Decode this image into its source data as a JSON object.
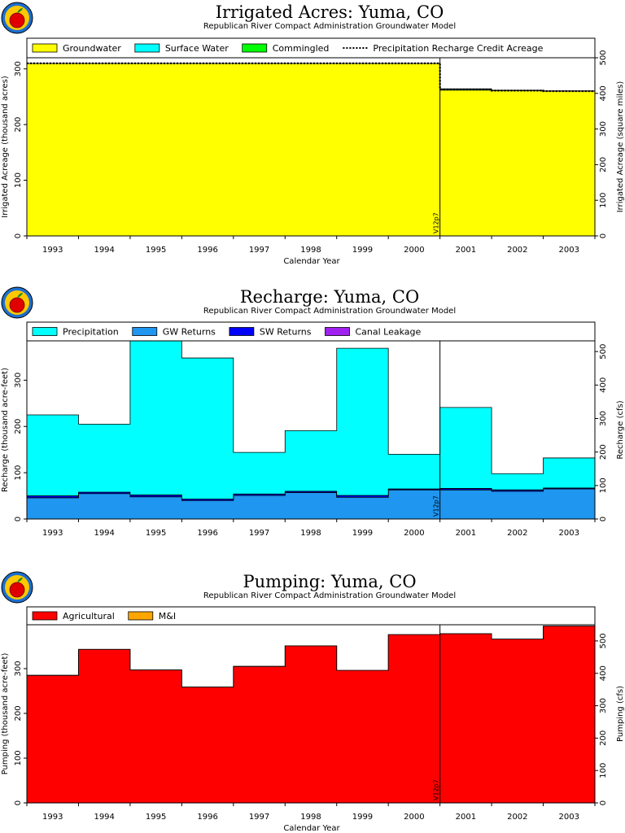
{
  "chart_data": [
    {
      "type": "area",
      "title": "Irrigated Acres: Yuma, CO",
      "subtitle": "Republican River Compact Administration Groundwater Model",
      "xlabel": "Calendar Year",
      "ylabel": "Irrigated Acreage (thousand acres)",
      "ylabel_right": "Irrigated Acreage (square miles)",
      "categories": [
        "1993",
        "1994",
        "1995",
        "1996",
        "1997",
        "1998",
        "1999",
        "2000",
        "2001",
        "2002",
        "2003"
      ],
      "ylim": [
        0,
        320
      ],
      "yticks": [
        0,
        100,
        200,
        300
      ],
      "ylim_right": [
        0,
        500
      ],
      "yticks_right": [
        0,
        100,
        200,
        300,
        400,
        500
      ],
      "series": [
        {
          "name": "Groundwater",
          "color": "#ffff00",
          "values": [
            310,
            310,
            310,
            310,
            310,
            310,
            310,
            310,
            262,
            261,
            260
          ]
        },
        {
          "name": "Surface Water",
          "color": "#00ffff",
          "values": [
            0,
            0,
            0,
            0,
            0,
            0,
            0,
            0,
            2,
            0.5,
            0.5
          ]
        },
        {
          "name": "Commingled",
          "color": "#00ff00",
          "values": [
            0,
            0,
            0,
            0,
            0,
            0,
            0,
            0,
            0,
            0,
            0
          ]
        }
      ],
      "line_series": {
        "name": "Precipitation Recharge Credit Acreage",
        "style": "dotted",
        "values": [
          310,
          310,
          310,
          310,
          310,
          310,
          310,
          310,
          263,
          261,
          260
        ]
      },
      "marker": {
        "year": "2000",
        "label": "V12p7"
      }
    },
    {
      "type": "area",
      "title": "Recharge: Yuma, CO",
      "subtitle": "Republican River Compact Administration Groundwater Model",
      "xlabel": "",
      "ylabel": "Recharge (thousand acre-feet)",
      "ylabel_right": "Recharge (cfs)",
      "categories": [
        "1993",
        "1994",
        "1995",
        "1996",
        "1997",
        "1998",
        "1999",
        "2000",
        "2001",
        "2002",
        "2003"
      ],
      "ylim": [
        0,
        385
      ],
      "yticks": [
        0,
        100,
        200,
        300
      ],
      "ylim_right": [
        0,
        532
      ],
      "yticks_right": [
        0,
        100,
        200,
        300,
        400,
        500
      ],
      "series": [
        {
          "name": "GW Returns",
          "color": "#1f96f0",
          "values": [
            46,
            55,
            48,
            40,
            51,
            57,
            47,
            63,
            63,
            60,
            65
          ]
        },
        {
          "name": "SW Returns",
          "color": "#0000ff",
          "values": [
            4,
            3,
            4,
            3,
            3,
            3,
            4,
            2,
            3,
            3,
            2
          ]
        },
        {
          "name": "Canal Leakage",
          "color": "#a020f0",
          "values": [
            0,
            0,
            0,
            0,
            0,
            0,
            0,
            0,
            0,
            0,
            0
          ]
        },
        {
          "name": "Precipitation",
          "color": "#00ffff",
          "values": [
            175,
            147,
            333,
            305,
            90,
            131,
            318,
            75,
            175,
            35,
            65
          ]
        }
      ],
      "legend_order": [
        "Precipitation",
        "GW Returns",
        "SW Returns",
        "Canal Leakage"
      ],
      "marker": {
        "year": "2000",
        "label": "V12p7"
      }
    },
    {
      "type": "area",
      "title": "Pumping: Yuma, CO",
      "subtitle": "Republican River Compact Administration Groundwater Model",
      "xlabel": "Calendar Year",
      "ylabel": "Pumping (thousand acre-feet)",
      "ylabel_right": "Pumping (cfs)",
      "categories": [
        "1993",
        "1994",
        "1995",
        "1996",
        "1997",
        "1998",
        "1999",
        "2000",
        "2001",
        "2002",
        "2003"
      ],
      "ylim": [
        0,
        398
      ],
      "yticks": [
        0,
        100,
        200,
        300
      ],
      "ylim_right": [
        0,
        550
      ],
      "yticks_right": [
        0,
        100,
        200,
        300,
        400,
        500
      ],
      "series": [
        {
          "name": "Agricultural",
          "color": "#ff0000",
          "values": [
            285,
            343,
            297,
            259,
            305,
            351,
            296,
            376,
            378,
            366,
            395
          ]
        },
        {
          "name": "M&I",
          "color": "#ffa500",
          "values": [
            0,
            0,
            0,
            0,
            0,
            0,
            0,
            0,
            0,
            0,
            0
          ]
        }
      ],
      "marker": {
        "year": "2000",
        "label": "V12p7"
      }
    }
  ]
}
